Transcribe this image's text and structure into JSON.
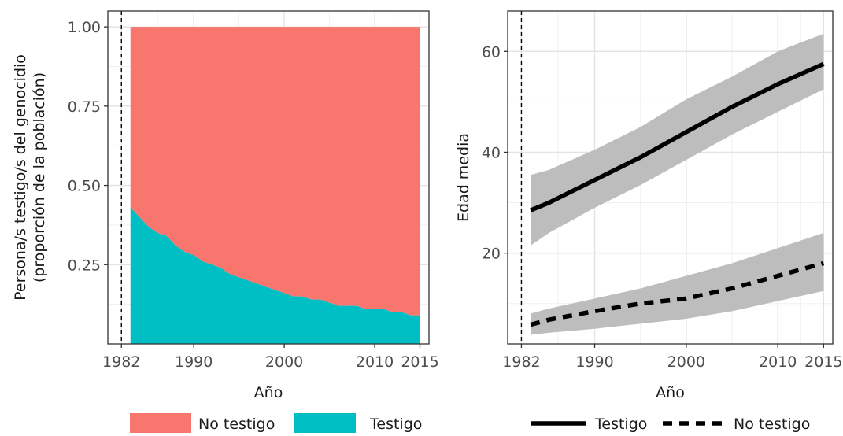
{
  "chart_data": [
    {
      "type": "area",
      "stacked": true,
      "normalized": true,
      "xlabel": "Año",
      "ylabel_lines": [
        "Persona/s testigo/s del genocidio",
        "(proporción de la población)"
      ],
      "xlim": [
        1980.5,
        2016
      ],
      "ylim": [
        0,
        1.05
      ],
      "x_ticks": [
        1982,
        1990,
        2000,
        2010,
        2015
      ],
      "y_ticks": [
        {
          "value": 0.25,
          "label": "0.25"
        },
        {
          "value": 0.5,
          "label": "0.50"
        },
        {
          "value": 0.75,
          "label": "0.75"
        },
        {
          "value": 1.0,
          "label": "1.00"
        }
      ],
      "vline": {
        "x": 1982,
        "style": "dashed"
      },
      "grid": true,
      "legend_position": "bottom",
      "x": [
        1983,
        1984,
        1985,
        1986,
        1987,
        1988,
        1989,
        1990,
        1991,
        1992,
        1993,
        1994,
        1995,
        1996,
        1997,
        1998,
        1999,
        2000,
        2001,
        2002,
        2003,
        2004,
        2005,
        2006,
        2007,
        2008,
        2009,
        2010,
        2011,
        2012,
        2013,
        2014,
        2015
      ],
      "series": [
        {
          "name": "Testigo",
          "color": "#00BFC4",
          "values": [
            0.43,
            0.4,
            0.37,
            0.35,
            0.34,
            0.31,
            0.29,
            0.28,
            0.26,
            0.25,
            0.24,
            0.22,
            0.21,
            0.2,
            0.19,
            0.18,
            0.17,
            0.16,
            0.15,
            0.15,
            0.14,
            0.14,
            0.13,
            0.12,
            0.12,
            0.12,
            0.11,
            0.11,
            0.11,
            0.1,
            0.1,
            0.09,
            0.09
          ]
        },
        {
          "name": "No testigo",
          "color": "#F8766D",
          "values": [
            0.57,
            0.6,
            0.63,
            0.65,
            0.66,
            0.69,
            0.71,
            0.72,
            0.74,
            0.75,
            0.76,
            0.78,
            0.79,
            0.8,
            0.81,
            0.82,
            0.83,
            0.84,
            0.85,
            0.85,
            0.86,
            0.86,
            0.87,
            0.88,
            0.88,
            0.88,
            0.89,
            0.89,
            0.89,
            0.9,
            0.9,
            0.91,
            0.91
          ]
        }
      ],
      "legend": [
        {
          "label": "No testigo",
          "color": "#F8766D"
        },
        {
          "label": "Testigo",
          "color": "#00BFC4"
        }
      ]
    },
    {
      "type": "line",
      "xlabel": "Año",
      "ylabel": "Edad media",
      "xlim": [
        1980.5,
        2016
      ],
      "ylim": [
        2,
        68
      ],
      "x_ticks": [
        1982,
        1990,
        2000,
        2010,
        2015
      ],
      "y_ticks": [
        {
          "value": 20,
          "label": "20"
        },
        {
          "value": 40,
          "label": "40"
        },
        {
          "value": 60,
          "label": "60"
        }
      ],
      "vline": {
        "x": 1982,
        "style": "dashed"
      },
      "grid": true,
      "legend_position": "bottom",
      "ribbon_color": "#bdbdbd",
      "series": [
        {
          "name": "Testigo",
          "line_style": "solid",
          "x": [
            1983,
            1985,
            1990,
            1995,
            2000,
            2005,
            2010,
            2015
          ],
          "values": [
            28.5,
            30,
            34.5,
            39,
            44,
            49,
            53.5,
            57.5
          ],
          "lower": [
            21.5,
            24,
            29,
            33.5,
            38.5,
            43.5,
            48,
            52.5
          ],
          "upper": [
            35.5,
            36.5,
            40.5,
            45,
            50.5,
            55,
            60,
            63.5
          ]
        },
        {
          "name": "No testigo",
          "line_style": "dashed",
          "x": [
            1983,
            1985,
            1990,
            1995,
            2000,
            2005,
            2010,
            2015
          ],
          "values": [
            5.8,
            6.8,
            8.5,
            10,
            11,
            13,
            15.5,
            18
          ],
          "lower": [
            3.8,
            4.2,
            5,
            6,
            7,
            8.5,
            10.5,
            12.5
          ],
          "upper": [
            8,
            9,
            11,
            13,
            15.5,
            18,
            21,
            24
          ]
        }
      ],
      "legend": [
        {
          "label": "Testigo",
          "line_style": "solid"
        },
        {
          "label": "No testigo",
          "line_style": "dashed"
        }
      ]
    }
  ]
}
